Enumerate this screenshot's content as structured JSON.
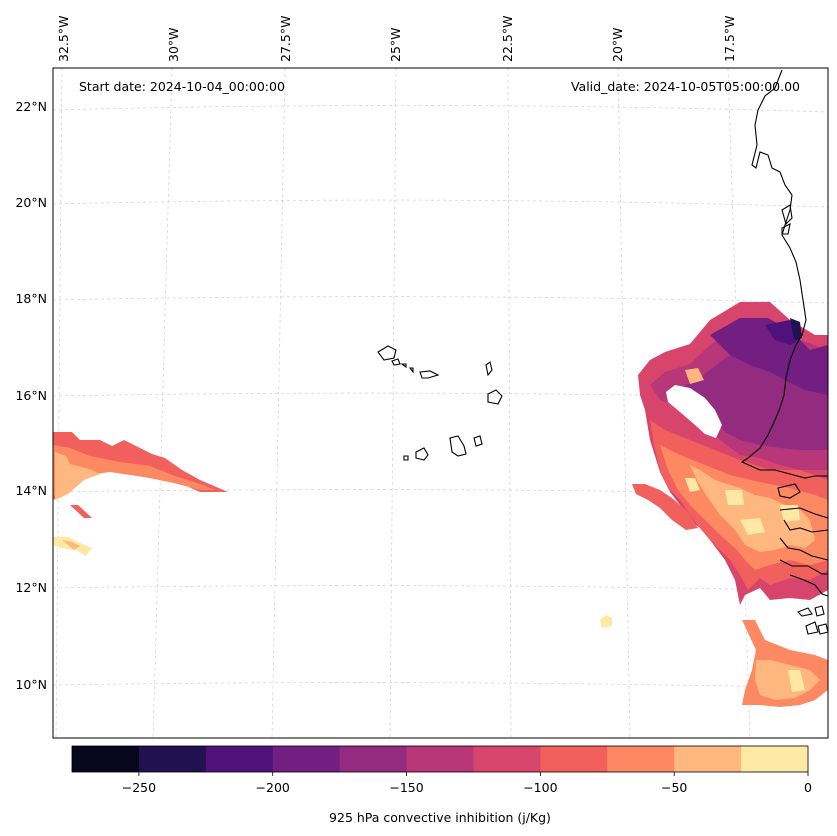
{
  "header": {
    "start_date": "Start date: 2024-10-04_00:00:00",
    "valid_date": "Valid_date: 2024-10-05T05:00:00.00"
  },
  "longitude_labels": [
    "32.5°W",
    "30°W",
    "27.5°W",
    "25°W",
    "22.5°W",
    "20°W",
    "17.5°W"
  ],
  "latitude_labels": [
    "22°N",
    "20°N",
    "18°N",
    "16°N",
    "14°N",
    "12°N",
    "10°N"
  ],
  "colorbar": {
    "label": "925 hPa convective inhibition (j/Kg)",
    "ticks": [
      "−250",
      "−200",
      "−150",
      "−100",
      "−50",
      "0"
    ],
    "tick_values": [
      -250,
      -200,
      -150,
      -100,
      -50,
      0
    ],
    "range": [
      -275,
      0
    ],
    "levels": [
      -275,
      -250,
      -225,
      -200,
      -175,
      -150,
      -125,
      -100,
      -75,
      -50,
      -25,
      0
    ],
    "colors": [
      "#07061c",
      "#221150",
      "#4f117b",
      "#721f81",
      "#932b80",
      "#b73779",
      "#d8456c",
      "#f1605d",
      "#fc8961",
      "#feb77e",
      "#fde8a4"
    ]
  }
}
